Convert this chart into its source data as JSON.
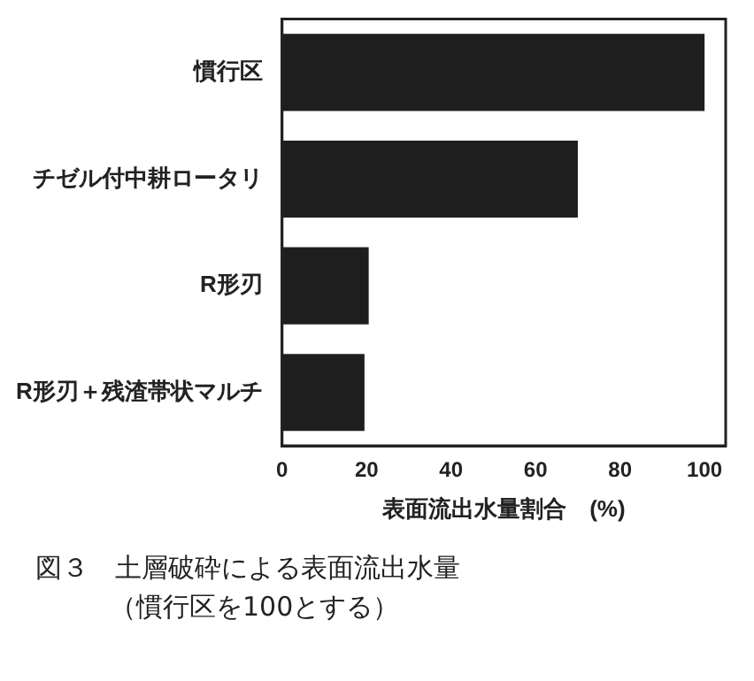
{
  "chart_data": {
    "type": "bar",
    "orientation": "horizontal",
    "categories": [
      "慣行区",
      "チゼル付中耕ロータリ",
      "R形刃",
      "R形刃＋残渣帯状マルチ"
    ],
    "values": [
      100,
      70,
      20.5,
      19.5
    ],
    "color": "#1e1e1e",
    "xlim": [
      0,
      105
    ],
    "xticks": [
      0,
      20,
      40,
      60,
      80,
      100
    ],
    "xlabel": "表面流出水量割合　(%)",
    "grid": false,
    "legend": false,
    "annotations": [
      "図３　土層破砕による表面流出水量",
      "（慣行区を100とする）"
    ]
  }
}
